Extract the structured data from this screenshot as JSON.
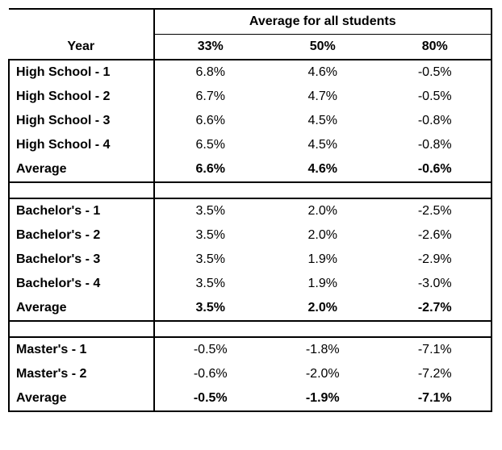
{
  "header": {
    "year_label": "Year",
    "group_label": "Average for all students",
    "cols": [
      "33%",
      "50%",
      "80%"
    ]
  },
  "sections": [
    {
      "rows": [
        {
          "label": "High School - 1",
          "v": [
            "6.8%",
            "4.6%",
            "-0.5%"
          ]
        },
        {
          "label": "High School - 2",
          "v": [
            "6.7%",
            "4.7%",
            "-0.5%"
          ]
        },
        {
          "label": "High School - 3",
          "v": [
            "6.6%",
            "4.5%",
            "-0.8%"
          ]
        },
        {
          "label": "High School - 4",
          "v": [
            "6.5%",
            "4.5%",
            "-0.8%"
          ]
        }
      ],
      "avg": {
        "label": "Average",
        "v": [
          "6.6%",
          "4.6%",
          "-0.6%"
        ]
      }
    },
    {
      "rows": [
        {
          "label": "Bachelor's - 1",
          "v": [
            "3.5%",
            "2.0%",
            "-2.5%"
          ]
        },
        {
          "label": "Bachelor's - 2",
          "v": [
            "3.5%",
            "2.0%",
            "-2.6%"
          ]
        },
        {
          "label": "Bachelor's - 3",
          "v": [
            "3.5%",
            "1.9%",
            "-2.9%"
          ]
        },
        {
          "label": "Bachelor's - 4",
          "v": [
            "3.5%",
            "1.9%",
            "-3.0%"
          ]
        }
      ],
      "avg": {
        "label": "Average",
        "v": [
          "3.5%",
          "2.0%",
          "-2.7%"
        ]
      }
    },
    {
      "rows": [
        {
          "label": "Master's - 1",
          "v": [
            "-0.5%",
            "-1.8%",
            "-7.1%"
          ]
        },
        {
          "label": "Master's - 2",
          "v": [
            "-0.6%",
            "-2.0%",
            "-7.2%"
          ]
        }
      ],
      "avg": {
        "label": "Average",
        "v": [
          "-0.5%",
          "-1.9%",
          "-7.1%"
        ]
      }
    }
  ]
}
